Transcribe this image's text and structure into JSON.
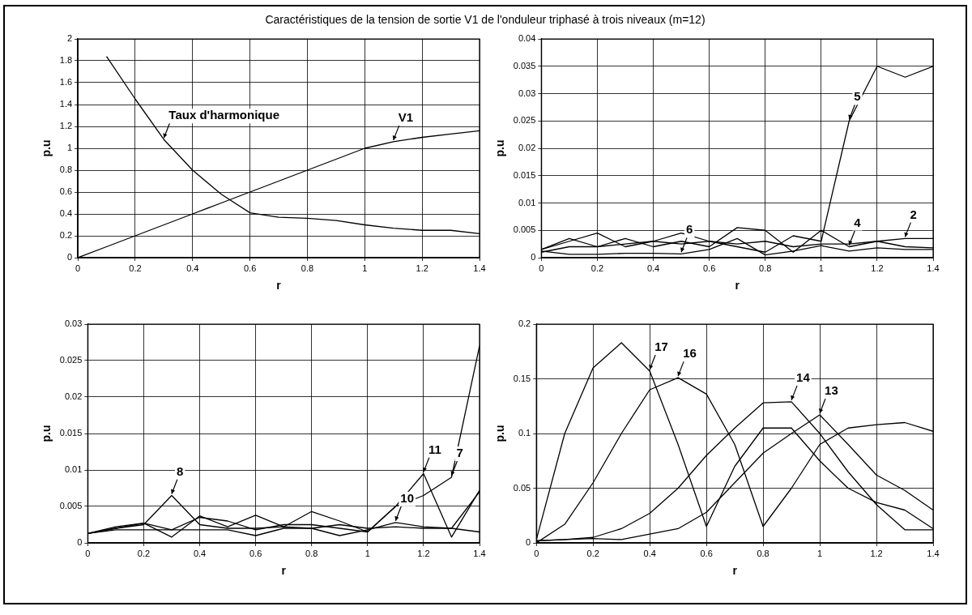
{
  "chart_data": [
    {
      "type": "line",
      "title": "Caractéristiques  de la tension de sortie V1 de l'onduleur triphasé à trois niveaux (m=12)",
      "xlabel": "r",
      "ylabel": "p.u",
      "x": [
        0,
        0.1,
        0.2,
        0.3,
        0.4,
        0.5,
        0.6,
        0.7,
        0.8,
        0.9,
        1.0,
        1.1,
        1.2,
        1.3,
        1.4
      ],
      "xlim": [
        0,
        1.4
      ],
      "xticks": [
        0,
        0.2,
        0.4,
        0.6,
        0.8,
        1,
        1.2,
        1.4
      ],
      "ylim": [
        0,
        2
      ],
      "yticks": [
        0,
        0.2,
        0.4,
        0.6,
        0.8,
        1,
        1.2,
        1.4,
        1.6,
        1.8,
        2
      ],
      "grid": true,
      "legend": false,
      "marker": "none",
      "line_style": "solid",
      "series": [
        {
          "color": "#000000",
          "values": [
            0,
            0.1,
            0.2,
            0.3,
            0.4,
            0.5,
            0.6,
            0.7,
            0.8,
            0.9,
            1.0,
            1.06,
            1.1,
            1.13,
            1.16
          ]
        },
        {
          "color": "#000000",
          "values": [
            null,
            1.84,
            1.45,
            1.08,
            0.8,
            0.58,
            0.41,
            0.37,
            0.36,
            0.34,
            0.3,
            0.27,
            0.25,
            0.25,
            0.22
          ]
        }
      ],
      "annotations": [
        {
          "text": "Taux d'harmonique",
          "x": 0.3,
          "y": 1.08
        },
        {
          "text": "V1",
          "x": 1.1,
          "y": 1.06
        }
      ]
    },
    {
      "type": "line",
      "xlabel": "r",
      "ylabel": "p.u",
      "x": [
        0,
        0.1,
        0.2,
        0.3,
        0.4,
        0.5,
        0.6,
        0.7,
        0.8,
        0.9,
        1.0,
        1.1,
        1.2,
        1.3,
        1.4
      ],
      "xlim": [
        0,
        1.4
      ],
      "xticks": [
        0,
        0.2,
        0.4,
        0.6,
        0.8,
        1,
        1.2,
        1.4
      ],
      "ylim": [
        0,
        0.04
      ],
      "yticks": [
        0,
        0.005,
        0.01,
        0.015,
        0.02,
        0.025,
        0.03,
        0.035,
        0.04
      ],
      "grid": true,
      "legend": false,
      "marker": "none",
      "line_style": "solid",
      "series": [
        {
          "color": "#000000",
          "values": [
            0.0015,
            0.003,
            0.0045,
            0.002,
            0.003,
            0.0045,
            0.003,
            0.002,
            0.001,
            0.004,
            0.003,
            0.025,
            0.035,
            0.033,
            0.035
          ]
        },
        {
          "color": "#000000",
          "values": [
            0.0015,
            0.0035,
            0.002,
            0.0035,
            0.002,
            0.003,
            0.002,
            0.0055,
            0.005,
            0.001,
            0.005,
            0.002,
            0.003,
            0.002,
            0.0018
          ]
        },
        {
          "color": "#000000",
          "values": [
            0.001,
            0.002,
            0.002,
            0.0025,
            0.003,
            0.0025,
            0.003,
            0.0025,
            0.003,
            0.002,
            0.0025,
            0.0025,
            0.003,
            0.0035,
            0.0035
          ]
        },
        {
          "color": "#000000",
          "values": [
            0.0012,
            0.0006,
            0.0006,
            0.0008,
            0.0008,
            0.0007,
            0.0015,
            0.0035,
            0.0005,
            0.0012,
            0.0022,
            0.0012,
            0.0018,
            0.0015,
            0.0015
          ]
        }
      ],
      "annotations": [
        {
          "text": "5",
          "x": 1.1,
          "y": 0.025
        },
        {
          "text": "6",
          "x": 0.5,
          "y": 0.0007
        },
        {
          "text": "4",
          "x": 1.1,
          "y": 0.002
        },
        {
          "text": "2",
          "x": 1.3,
          "y": 0.0035
        }
      ]
    },
    {
      "type": "line",
      "xlabel": "r",
      "ylabel": "p.u",
      "x": [
        0,
        0.1,
        0.2,
        0.3,
        0.4,
        0.5,
        0.6,
        0.7,
        0.8,
        0.9,
        1.0,
        1.1,
        1.2,
        1.3,
        1.4
      ],
      "xlim": [
        0,
        1.4
      ],
      "xticks": [
        0,
        0.2,
        0.4,
        0.6,
        0.8,
        1,
        1.2,
        1.4
      ],
      "ylim": [
        0,
        0.03
      ],
      "yticks": [
        0,
        0.005,
        0.01,
        0.015,
        0.02,
        0.025,
        0.03
      ],
      "grid": true,
      "legend": false,
      "marker": "none",
      "line_style": "solid",
      "series": [
        {
          "color": "#000000",
          "values": [
            0.0013,
            0.002,
            0.0027,
            0.0018,
            0.0035,
            0.003,
            0.0018,
            0.0025,
            0.0025,
            0.002,
            0.0015,
            0.005,
            0.0065,
            0.009,
            0.027
          ]
        },
        {
          "color": "#000000",
          "values": [
            0.0013,
            0.002,
            0.0025,
            0.0065,
            0.0025,
            0.002,
            0.002,
            0.0022,
            0.002,
            0.0025,
            0.002,
            0.0022,
            0.002,
            0.002,
            0.0015
          ]
        },
        {
          "color": "#000000",
          "values": [
            0.0013,
            0.0022,
            0.0027,
            0.0008,
            0.0037,
            0.0022,
            0.0038,
            0.0022,
            0.0043,
            0.003,
            0.0015,
            0.005,
            0.0095,
            0.0008,
            0.0072
          ]
        },
        {
          "color": "#000000",
          "values": [
            0.0013,
            0.0018,
            0.0018,
            0.0018,
            0.0018,
            0.0018,
            0.001,
            0.002,
            0.002,
            0.001,
            0.0018,
            0.0028,
            0.0022,
            0.002,
            0.007
          ]
        }
      ],
      "annotations": [
        {
          "text": "8",
          "x": 0.3,
          "y": 0.0065
        },
        {
          "text": "10",
          "x": 1.1,
          "y": 0.0028
        },
        {
          "text": "11",
          "x": 1.2,
          "y": 0.0095
        },
        {
          "text": "7",
          "x": 1.3,
          "y": 0.009
        }
      ]
    },
    {
      "type": "line",
      "xlabel": "r",
      "ylabel": "p.u",
      "x": [
        0,
        0.1,
        0.2,
        0.3,
        0.4,
        0.5,
        0.6,
        0.7,
        0.8,
        0.9,
        1.0,
        1.1,
        1.2,
        1.3,
        1.4
      ],
      "xlim": [
        0,
        1.4
      ],
      "xticks": [
        0,
        0.2,
        0.4,
        0.6,
        0.8,
        1,
        1.2,
        1.4
      ],
      "ylim": [
        0,
        0.2
      ],
      "yticks": [
        0,
        0.05,
        0.1,
        0.15,
        0.2
      ],
      "grid": true,
      "legend": false,
      "marker": "none",
      "line_style": "solid",
      "series": [
        {
          "color": "#000000",
          "values": [
            0.003,
            0.1,
            0.16,
            0.183,
            0.157,
            0.09,
            0.015,
            0.07,
            0.105,
            0.105,
            0.075,
            0.05,
            0.037,
            0.03,
            0.013
          ]
        },
        {
          "color": "#000000",
          "values": [
            0,
            0.017,
            0.055,
            0.1,
            0.14,
            0.151,
            0.136,
            0.09,
            0.015,
            0.05,
            0.09,
            0.105,
            0.108,
            0.11,
            0.102
          ]
        },
        {
          "color": "#000000",
          "values": [
            0.002,
            0.003,
            0.005,
            0.013,
            0.027,
            0.05,
            0.08,
            0.105,
            0.128,
            0.129,
            0.1,
            0.065,
            0.035,
            0.012,
            0.012
          ]
        },
        {
          "color": "#000000",
          "values": [
            0.002,
            0.003,
            0.004,
            0.003,
            0.008,
            0.013,
            0.028,
            0.055,
            0.082,
            0.1,
            0.117,
            0.09,
            0.062,
            0.048,
            0.03
          ]
        }
      ],
      "annotations": [
        {
          "text": "17",
          "x": 0.4,
          "y": 0.157
        },
        {
          "text": "16",
          "x": 0.5,
          "y": 0.151
        },
        {
          "text": "14",
          "x": 0.9,
          "y": 0.129
        },
        {
          "text": "13",
          "x": 1.0,
          "y": 0.117
        }
      ]
    }
  ]
}
